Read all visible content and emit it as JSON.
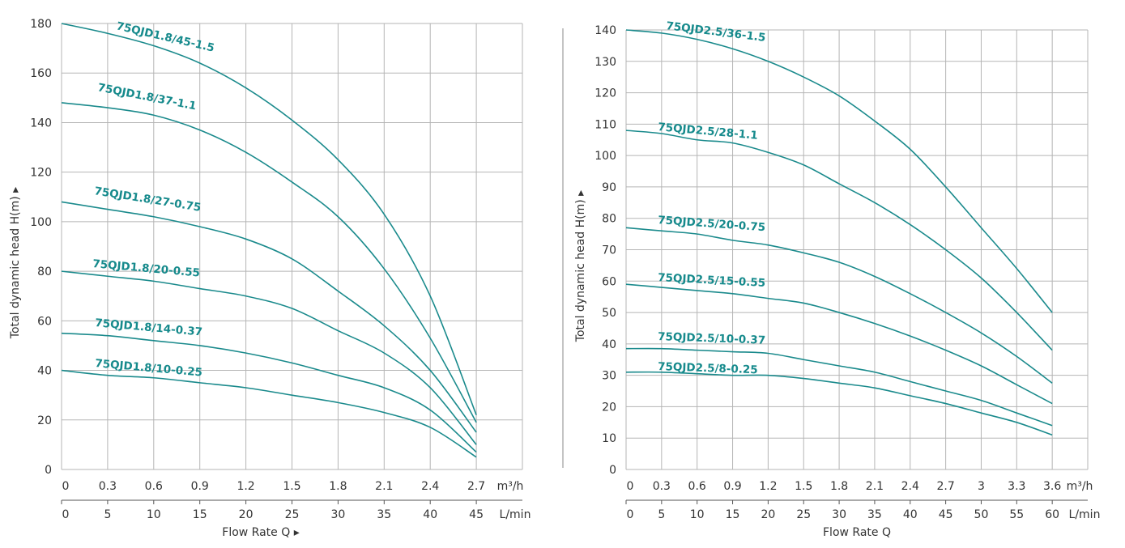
{
  "chart_data": [
    {
      "type": "line",
      "ylabel": "Total dynamic head H(m)",
      "xlabel": "Flow Rate Q",
      "x_unit_primary": "m³/h",
      "x_unit_secondary": "L/min",
      "x": [
        0,
        0.3,
        0.6,
        0.9,
        1.2,
        1.5,
        1.8,
        2.1,
        2.4,
        2.7
      ],
      "x_ticks_primary": [
        "0",
        "0.3",
        "0.6",
        "0.9",
        "1.2",
        "1.5",
        "1.8",
        "2.1",
        "2.4",
        "2.7"
      ],
      "x_ticks_secondary": [
        "0",
        "5",
        "10",
        "15",
        "20",
        "25",
        "30",
        "35",
        "40",
        "45"
      ],
      "xlim": [
        0,
        3.0
      ],
      "ylim": [
        0,
        180
      ],
      "y_ticks": [
        0,
        20,
        40,
        60,
        80,
        100,
        120,
        140,
        160,
        180
      ],
      "grid": true,
      "line_color": "#1a8a8c",
      "series": [
        {
          "name": "75QJD1.8/45-1.5",
          "values": [
            180,
            176,
            171,
            164,
            154,
            141,
            125,
            103,
            70,
            22
          ]
        },
        {
          "name": "75QJD1.8/37-1.1",
          "values": [
            148,
            146,
            143,
            137,
            128,
            116,
            102,
            81,
            53,
            19
          ]
        },
        {
          "name": "75QJD1.8/27-0.75",
          "values": [
            108,
            105,
            102,
            98,
            93,
            85,
            72,
            58,
            40,
            15
          ]
        },
        {
          "name": "75QJD1.8/20-0.55",
          "values": [
            80,
            78,
            76,
            73,
            70,
            65,
            56,
            47,
            33,
            10
          ]
        },
        {
          "name": "75QJD1.8/14-0.37",
          "values": [
            55,
            54,
            52,
            50,
            47,
            43,
            38,
            33,
            24,
            7
          ]
        },
        {
          "name": "75QJD1.8/10-0.25",
          "values": [
            40,
            38,
            37,
            35,
            33,
            30,
            27,
            23,
            17,
            5
          ]
        }
      ]
    },
    {
      "type": "line",
      "ylabel": "Total dynamic head H(m)",
      "xlabel": "Flow Rate Q",
      "x_unit_primary": "m³/h",
      "x_unit_secondary": "L/min",
      "x": [
        0,
        0.3,
        0.6,
        0.9,
        1.2,
        1.5,
        1.8,
        2.1,
        2.4,
        2.7,
        3.0,
        3.3,
        3.6
      ],
      "x_ticks_primary": [
        "0",
        "0.3",
        "0.6",
        "0.9",
        "1.2",
        "1.5",
        "1.8",
        "2.1",
        "2.4",
        "2.7",
        "3",
        "3.3",
        "3.6"
      ],
      "x_ticks_secondary": [
        "0",
        "5",
        "10",
        "15",
        "20",
        "25",
        "30",
        "35",
        "40",
        "45",
        "50",
        "55",
        "60"
      ],
      "xlim": [
        0,
        3.9
      ],
      "ylim": [
        0,
        140
      ],
      "y_ticks": [
        0,
        10,
        20,
        30,
        40,
        50,
        60,
        70,
        80,
        90,
        100,
        110,
        120,
        130,
        140
      ],
      "grid": true,
      "line_color": "#1a8a8c",
      "series": [
        {
          "name": "75QJD2.5/36-1.5",
          "values": [
            140,
            139,
            137,
            134,
            130,
            125,
            119,
            111,
            102,
            90,
            77,
            64,
            50
          ]
        },
        {
          "name": "75QJD2.5/28-1.1",
          "values": [
            108,
            107,
            105,
            104,
            101,
            97,
            91,
            85,
            78,
            70,
            61,
            50,
            38
          ]
        },
        {
          "name": "75QJD2.5/20-0.75",
          "values": [
            77,
            76,
            75,
            73,
            71.5,
            69,
            66,
            61.5,
            56,
            50,
            43.5,
            36,
            27.5
          ]
        },
        {
          "name": "75QJD2.5/15-0.55",
          "values": [
            59,
            58,
            57,
            56,
            54.5,
            53,
            50,
            46.5,
            42.5,
            38,
            33,
            27,
            21
          ]
        },
        {
          "name": "75QJD2.5/10-0.37",
          "values": [
            38.5,
            38.5,
            38,
            37.5,
            37,
            35,
            33,
            31,
            28,
            25,
            22,
            18,
            14
          ]
        },
        {
          "name": "75QJD2.5/8-0.25",
          "values": [
            31,
            31,
            30.5,
            30,
            30,
            29,
            27.5,
            26,
            23.5,
            21,
            18,
            15,
            11
          ]
        }
      ]
    }
  ]
}
